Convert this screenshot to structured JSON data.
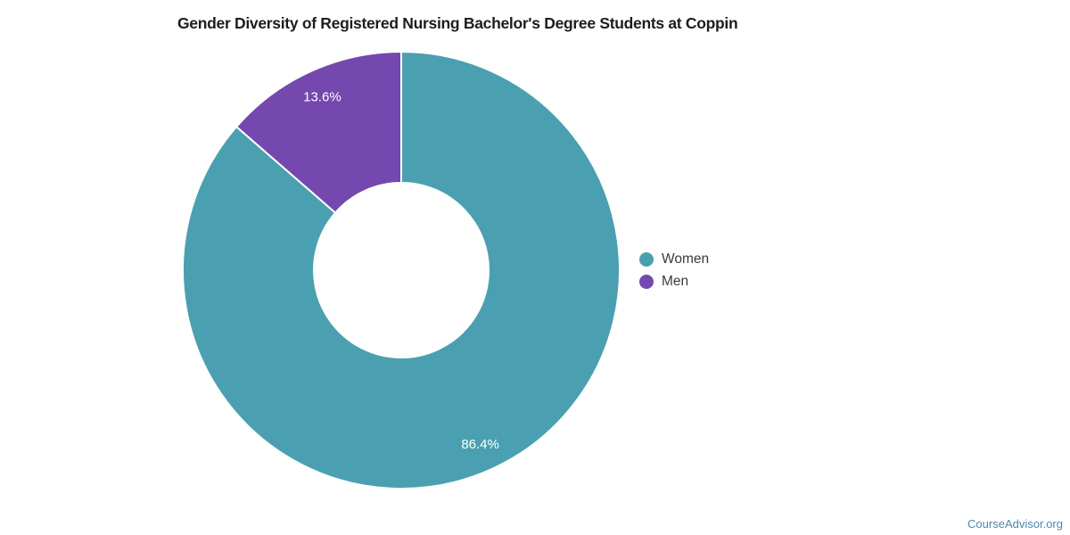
{
  "chart_data": {
    "type": "pie",
    "subtype": "donut",
    "title": "Gender Diversity of Registered Nursing Bachelor's Degree Students at Coppin",
    "series": [
      {
        "name": "Women",
        "value": 86.4,
        "label": "86.4%",
        "color": "#4AA0B0"
      },
      {
        "name": "Men",
        "value": 13.6,
        "label": "13.6%",
        "color": "#7448AE"
      }
    ],
    "start_angle_deg": 0,
    "direction": "clockwise",
    "inner_radius_ratio": 0.4,
    "slice_label_color": "#FFFFFF",
    "separator_color": "#FFFFFF",
    "legend_position": "right",
    "legend_text_color": "#3a3a3a",
    "title_color": "#1d1d1d"
  },
  "attribution": {
    "text": "CourseAdvisor.org",
    "color": "#4A8BAC"
  }
}
